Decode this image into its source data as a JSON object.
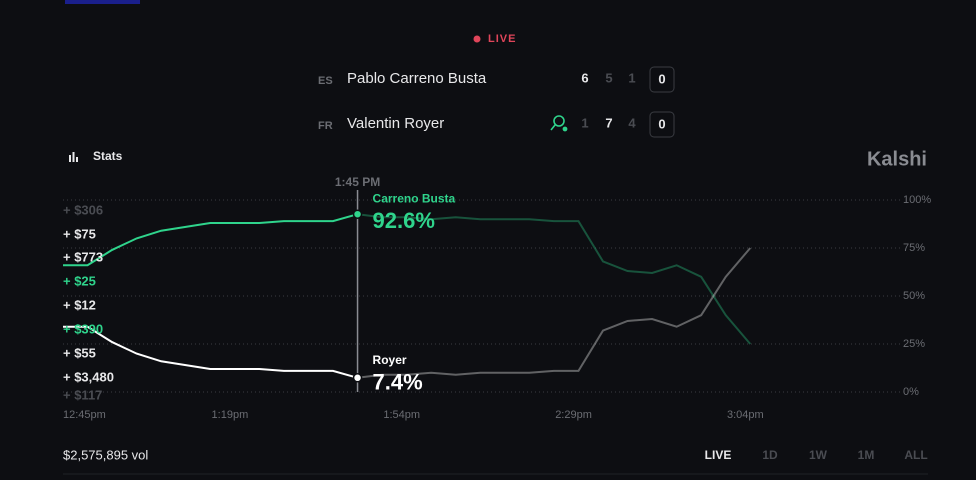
{
  "live": "LIVE",
  "players": [
    {
      "country": "ES",
      "name": "Pablo Carreno Busta",
      "sets": [
        6,
        5,
        1
      ],
      "points": 0
    },
    {
      "country": "FR",
      "name": "Valentin Royer",
      "sets": [
        1,
        7,
        4
      ],
      "points": 0
    }
  ],
  "stats": "Stats",
  "brand": "Kalshi",
  "order_labels": [
    "+ $306",
    "+ $75",
    "+ $773",
    "+ $25",
    "+ $12",
    "+ $390",
    "+ $55",
    "+ $3,480",
    "+ $117"
  ],
  "chart_data": {
    "type": "line",
    "hover_label": "1:45 PM",
    "x": [
      "12:45pm",
      "12:50pm",
      "12:55pm",
      "1:00pm",
      "1:05pm",
      "1:10pm",
      "1:15pm",
      "1:20pm",
      "1:25pm",
      "1:30pm",
      "1:35pm",
      "1:40pm",
      "1:45pm",
      "1:50pm",
      "1:55pm",
      "2:00pm",
      "2:05pm",
      "2:10pm",
      "2:15pm",
      "2:20pm",
      "2:25pm",
      "2:30pm",
      "2:35pm",
      "2:40pm",
      "2:45pm",
      "2:50pm",
      "2:55pm",
      "3:00pm",
      "3:05pm"
    ],
    "xlim": [
      "12:45pm",
      "3:08pm"
    ],
    "xticks": [
      "12:45pm",
      "1:19pm",
      "1:54pm",
      "2:29pm",
      "3:04pm"
    ],
    "ylim": [
      0,
      100
    ],
    "yticks": [
      {
        "value": 100,
        "label": "100%"
      },
      {
        "value": 75,
        "label": "75%"
      },
      {
        "value": 50,
        "label": "50%"
      },
      {
        "value": 25,
        "label": "25%"
      },
      {
        "value": 0,
        "label": "0%"
      }
    ],
    "grid": true,
    "series": [
      {
        "name": "Carreno Busta",
        "color": "#2fd48c",
        "values": [
          66,
          66,
          74,
          80,
          84,
          86,
          88,
          88,
          88,
          89,
          89,
          89,
          92.6,
          91,
          91,
          90,
          91,
          90,
          90,
          90,
          89,
          89,
          68,
          63,
          62,
          66,
          60,
          40,
          25
        ],
        "value_labels": [
          null,
          null,
          null,
          null,
          null,
          null,
          null,
          null,
          null,
          null,
          null,
          null,
          "92.6%",
          null,
          null,
          null,
          null,
          null,
          null,
          null,
          null,
          null,
          null,
          null,
          null,
          null,
          null,
          null,
          null
        ]
      },
      {
        "name": "Royer",
        "color": "#ffffff",
        "values": [
          34,
          34,
          26,
          20,
          16,
          14,
          12,
          12,
          12,
          11,
          11,
          11,
          7.4,
          9,
          9,
          10,
          9,
          10,
          10,
          10,
          11,
          11,
          32,
          37,
          38,
          34,
          40,
          60,
          75
        ],
        "value_labels": [
          null,
          null,
          null,
          null,
          null,
          null,
          null,
          null,
          null,
          null,
          null,
          null,
          "7.4%",
          null,
          null,
          null,
          null,
          null,
          null,
          null,
          null,
          null,
          null,
          null,
          null,
          null,
          null,
          null,
          null
        ]
      }
    ],
    "volume": "$2,575,895 vol",
    "ranges": [
      "LIVE",
      "1D",
      "1W",
      "1M",
      "ALL"
    ]
  }
}
